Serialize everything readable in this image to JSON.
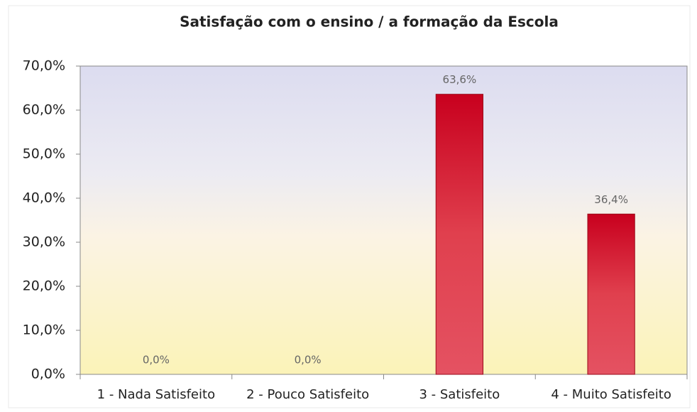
{
  "chart_data": {
    "type": "bar",
    "title": "Satisfação com o ensino / a formação da Escola",
    "categories": [
      "1 - Nada Satisfeito",
      "2 - Pouco Satisfeito",
      "3 - Satisfeito",
      "4 - Muito Satisfeito"
    ],
    "values": [
      0,
      0,
      63.6,
      36.4
    ],
    "value_labels": [
      "0,0%",
      "0,0%",
      "63,6%",
      "36,4%"
    ],
    "color": "#d81e34",
    "ylim": [
      0,
      70
    ],
    "yticks": [
      {
        "value": 0,
        "label": "0,0%"
      },
      {
        "value": 10,
        "label": "10,0%"
      },
      {
        "value": 20,
        "label": "20,0%"
      },
      {
        "value": 30,
        "label": "30,0%"
      },
      {
        "value": 40,
        "label": "40,0%"
      },
      {
        "value": 50,
        "label": "50,0%"
      },
      {
        "value": 60,
        "label": "60,0%"
      },
      {
        "value": 70,
        "label": "70,0%"
      }
    ],
    "grid": false
  }
}
